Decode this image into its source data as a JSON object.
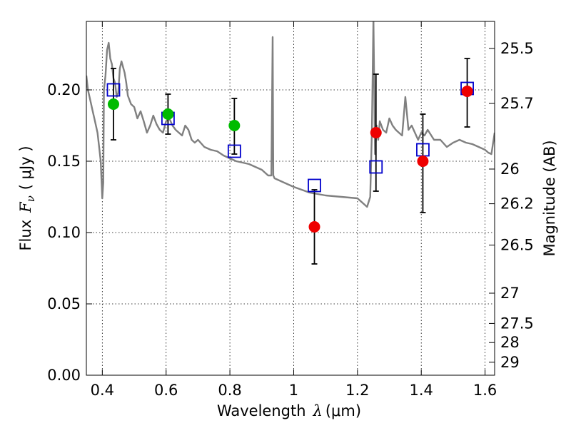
{
  "chart_data": {
    "type": "scatter",
    "xlabel_text": "Wavelength",
    "xlabel_symbol": "λ",
    "xlabel_unit": "(μm)",
    "ylabel_text": "Flux",
    "ylabel_symbol": "F",
    "ylabel_sub": "ν",
    "ylabel_unit": "( μJy )",
    "y2label": "Magnitude (AB)",
    "xlim": [
      0.35,
      1.63
    ],
    "ylim": [
      0.0,
      0.248
    ],
    "xticks": [
      0.4,
      0.6,
      0.8,
      1.0,
      1.2,
      1.4,
      1.6
    ],
    "xtick_labels": [
      "0.4",
      "0.6",
      "0.8",
      "1",
      "1.2",
      "1.4",
      "1.6"
    ],
    "yticks": [
      0.0,
      0.05,
      0.1,
      0.15,
      0.2
    ],
    "ytick_labels": [
      "0.00",
      "0.05",
      "0.10",
      "0.15",
      "0.20"
    ],
    "mag_ticks": [
      {
        "label": "25.5",
        "flux": 0.2291
      },
      {
        "label": "25.7",
        "flux": 0.1905
      },
      {
        "label": "26",
        "flux": 0.1445
      },
      {
        "label": "26.2",
        "flux": 0.1202
      },
      {
        "label": "26.5",
        "flux": 0.0912
      },
      {
        "label": "27",
        "flux": 0.0575
      },
      {
        "label": "27.5",
        "flux": 0.0363
      },
      {
        "label": "28",
        "flux": 0.0229
      },
      {
        "label": "29",
        "flux": 0.0091
      }
    ],
    "grid": true,
    "colors": {
      "spectrum": "#808080",
      "model_box": "#0000cc",
      "detection_green": "#00bb00",
      "detection_red": "#ee0000",
      "errorbar": "#000000"
    },
    "series": [
      {
        "name": "observed",
        "points": [
          {
            "x": 0.435,
            "y": 0.19,
            "yerr_low": 0.165,
            "yerr_high": 0.215,
            "color": "green"
          },
          {
            "x": 0.606,
            "y": 0.183,
            "yerr_low": 0.169,
            "yerr_high": 0.197,
            "color": "green"
          },
          {
            "x": 0.814,
            "y": 0.175,
            "yerr_low": 0.155,
            "yerr_high": 0.194,
            "color": "green"
          },
          {
            "x": 1.065,
            "y": 0.104,
            "yerr_low": 0.078,
            "yerr_high": 0.13,
            "color": "red"
          },
          {
            "x": 1.258,
            "y": 0.17,
            "yerr_low": 0.129,
            "yerr_high": 0.211,
            "color": "red"
          },
          {
            "x": 1.405,
            "y": 0.15,
            "yerr_low": 0.114,
            "yerr_high": 0.183,
            "color": "red"
          },
          {
            "x": 1.544,
            "y": 0.199,
            "yerr_low": 0.174,
            "yerr_high": 0.222,
            "color": "red"
          }
        ]
      },
      {
        "name": "model_photometry",
        "points": [
          {
            "x": 0.435,
            "y": 0.2
          },
          {
            "x": 0.606,
            "y": 0.18
          },
          {
            "x": 0.814,
            "y": 0.157
          },
          {
            "x": 1.065,
            "y": 0.133
          },
          {
            "x": 1.258,
            "y": 0.146
          },
          {
            "x": 1.405,
            "y": 0.158
          },
          {
            "x": 1.544,
            "y": 0.201
          }
        ]
      },
      {
        "name": "model_spectrum",
        "x": [
          0.35,
          0.355,
          0.36,
          0.365,
          0.37,
          0.375,
          0.38,
          0.385,
          0.39,
          0.395,
          0.4,
          0.403,
          0.405,
          0.41,
          0.415,
          0.42,
          0.425,
          0.43,
          0.435,
          0.44,
          0.445,
          0.45,
          0.455,
          0.46,
          0.47,
          0.475,
          0.48,
          0.49,
          0.5,
          0.51,
          0.52,
          0.53,
          0.54,
          0.55,
          0.56,
          0.57,
          0.58,
          0.59,
          0.6,
          0.61,
          0.62,
          0.63,
          0.64,
          0.65,
          0.66,
          0.67,
          0.68,
          0.69,
          0.7,
          0.72,
          0.74,
          0.76,
          0.78,
          0.8,
          0.82,
          0.84,
          0.86,
          0.88,
          0.9,
          0.92,
          0.93,
          0.934,
          0.936,
          0.94,
          0.96,
          0.98,
          1.0,
          1.05,
          1.1,
          1.15,
          1.2,
          1.22,
          1.23,
          1.24,
          1.245,
          1.25,
          1.255,
          1.26,
          1.265,
          1.27,
          1.28,
          1.29,
          1.3,
          1.31,
          1.32,
          1.33,
          1.34,
          1.35,
          1.36,
          1.37,
          1.38,
          1.39,
          1.4,
          1.41,
          1.42,
          1.44,
          1.46,
          1.48,
          1.5,
          1.52,
          1.54,
          1.56,
          1.58,
          1.6,
          1.61,
          1.62,
          1.63
        ],
        "y": [
          0.21,
          0.2,
          0.195,
          0.19,
          0.185,
          0.18,
          0.175,
          0.17,
          0.16,
          0.15,
          0.124,
          0.135,
          0.2,
          0.21,
          0.228,
          0.233,
          0.222,
          0.218,
          0.208,
          0.205,
          0.195,
          0.198,
          0.215,
          0.22,
          0.212,
          0.205,
          0.196,
          0.19,
          0.188,
          0.18,
          0.185,
          0.178,
          0.17,
          0.175,
          0.182,
          0.176,
          0.172,
          0.17,
          0.178,
          0.18,
          0.175,
          0.172,
          0.17,
          0.168,
          0.175,
          0.172,
          0.165,
          0.163,
          0.165,
          0.16,
          0.158,
          0.157,
          0.154,
          0.152,
          0.15,
          0.149,
          0.148,
          0.146,
          0.144,
          0.14,
          0.14,
          0.237,
          0.14,
          0.138,
          0.136,
          0.134,
          0.132,
          0.128,
          0.126,
          0.125,
          0.124,
          0.12,
          0.118,
          0.125,
          0.17,
          0.25,
          0.155,
          0.175,
          0.165,
          0.178,
          0.172,
          0.17,
          0.18,
          0.175,
          0.172,
          0.17,
          0.168,
          0.195,
          0.172,
          0.175,
          0.17,
          0.165,
          0.17,
          0.168,
          0.172,
          0.165,
          0.165,
          0.16,
          0.163,
          0.165,
          0.163,
          0.162,
          0.16,
          0.158,
          0.156,
          0.155,
          0.17
        ]
      }
    ]
  }
}
